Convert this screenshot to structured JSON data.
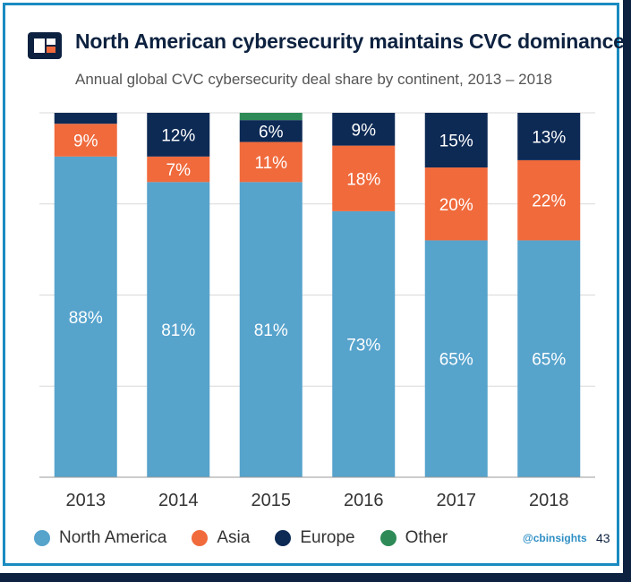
{
  "header": {
    "title": "North American cybersecurity maintains CVC dominance",
    "subtitle": "Annual global CVC cybersecurity deal share by continent, 2013 – 2018"
  },
  "footer": {
    "handle": "@cbinsights",
    "page_number": "43"
  },
  "colors": {
    "north_america": "#56a3cc",
    "asia": "#f06a3c",
    "europe": "#0d2a55",
    "other": "#2e8b57",
    "frame": "#1a8bc0",
    "brand_dark": "#0d2240"
  },
  "chart_data": {
    "type": "bar",
    "stacked": true,
    "categories": [
      "2013",
      "2014",
      "2015",
      "2016",
      "2017",
      "2018"
    ],
    "ylim": [
      0,
      100
    ],
    "grid": true,
    "legend_position": "bottom",
    "series": [
      {
        "name": "North America",
        "key": "north_america",
        "values": [
          88,
          81,
          81,
          73,
          65,
          65
        ],
        "labels": [
          "88%",
          "81%",
          "81%",
          "73%",
          "65%",
          "65%"
        ]
      },
      {
        "name": "Asia",
        "key": "asia",
        "values": [
          9,
          7,
          11,
          18,
          20,
          22
        ],
        "labels": [
          "9%",
          "7%",
          "11%",
          "18%",
          "20%",
          "22%"
        ]
      },
      {
        "name": "Europe",
        "key": "europe",
        "values": [
          3,
          12,
          6,
          9,
          15,
          13
        ],
        "labels": [
          "",
          "12%",
          "6%",
          "9%",
          "15%",
          "13%"
        ]
      },
      {
        "name": "Other",
        "key": "other",
        "values": [
          0,
          0,
          2,
          0,
          0,
          0
        ],
        "labels": [
          "",
          "",
          "",
          "",
          "",
          ""
        ]
      }
    ]
  }
}
